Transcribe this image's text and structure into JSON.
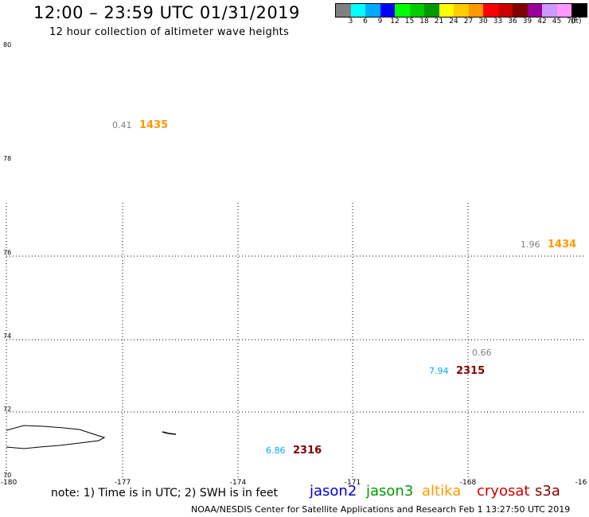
{
  "header": {
    "title": "12:00 – 23:59 UTC 01/31/2019",
    "subtitle": "12 hour collection of altimeter wave heights"
  },
  "color_scale": {
    "colors": [
      "#808080",
      "#00ffff",
      "#00aaff",
      "#0000ff",
      "#00ff00",
      "#00cc00",
      "#009900",
      "#ffff00",
      "#ffcc00",
      "#ff9900",
      "#ff0000",
      "#cc0000",
      "#800000",
      "#990099",
      "#cc99ff",
      "#ff99ff",
      "#000000"
    ],
    "labels": [
      "3",
      "6",
      "9",
      "12",
      "15",
      "18",
      "21",
      "24",
      "27",
      "30",
      "33",
      "36",
      "39",
      "42",
      "45",
      "70"
    ],
    "unit": "(ft)"
  },
  "map": {
    "lat_labels": [
      "80",
      "78",
      "76",
      "74",
      "72",
      "70"
    ],
    "lon_labels": [
      "-180",
      "-177",
      "-174",
      "-171",
      "-168",
      "-16"
    ],
    "observations": [
      {
        "swh": "0.41",
        "pass_time": "1435",
        "swh_color": "#808080",
        "pass_color": "#ff9900"
      },
      {
        "swh": "1.96",
        "pass_time": "1434",
        "swh_color": "#808080",
        "pass_color": "#ff9900"
      },
      {
        "swh": "0.66",
        "pass_time": "",
        "swh_color": "#808080",
        "pass_color": "#800000"
      },
      {
        "swh": "7.94",
        "pass_time": "2315",
        "swh_color": "#00aaff",
        "pass_color": "#800000"
      },
      {
        "swh": "6.86",
        "pass_time": "2316",
        "swh_color": "#00aaff",
        "pass_color": "#800000"
      }
    ]
  },
  "footer": {
    "note": "note: 1) Time is in UTC; 2) SWH is in feet",
    "satellites": [
      {
        "name": "jason2",
        "color": "#0000cc"
      },
      {
        "name": "jason3",
        "color": "#009900"
      },
      {
        "name": "altika",
        "color": "#ff9900"
      },
      {
        "name": "cryosat",
        "color": "#cc0000"
      },
      {
        "name": "s3a",
        "color": "#800000"
      }
    ],
    "credit": "NOAA/NESDIS Center for Satellite Applications and Research   Feb  1 13:27:50 UTC 2019"
  }
}
